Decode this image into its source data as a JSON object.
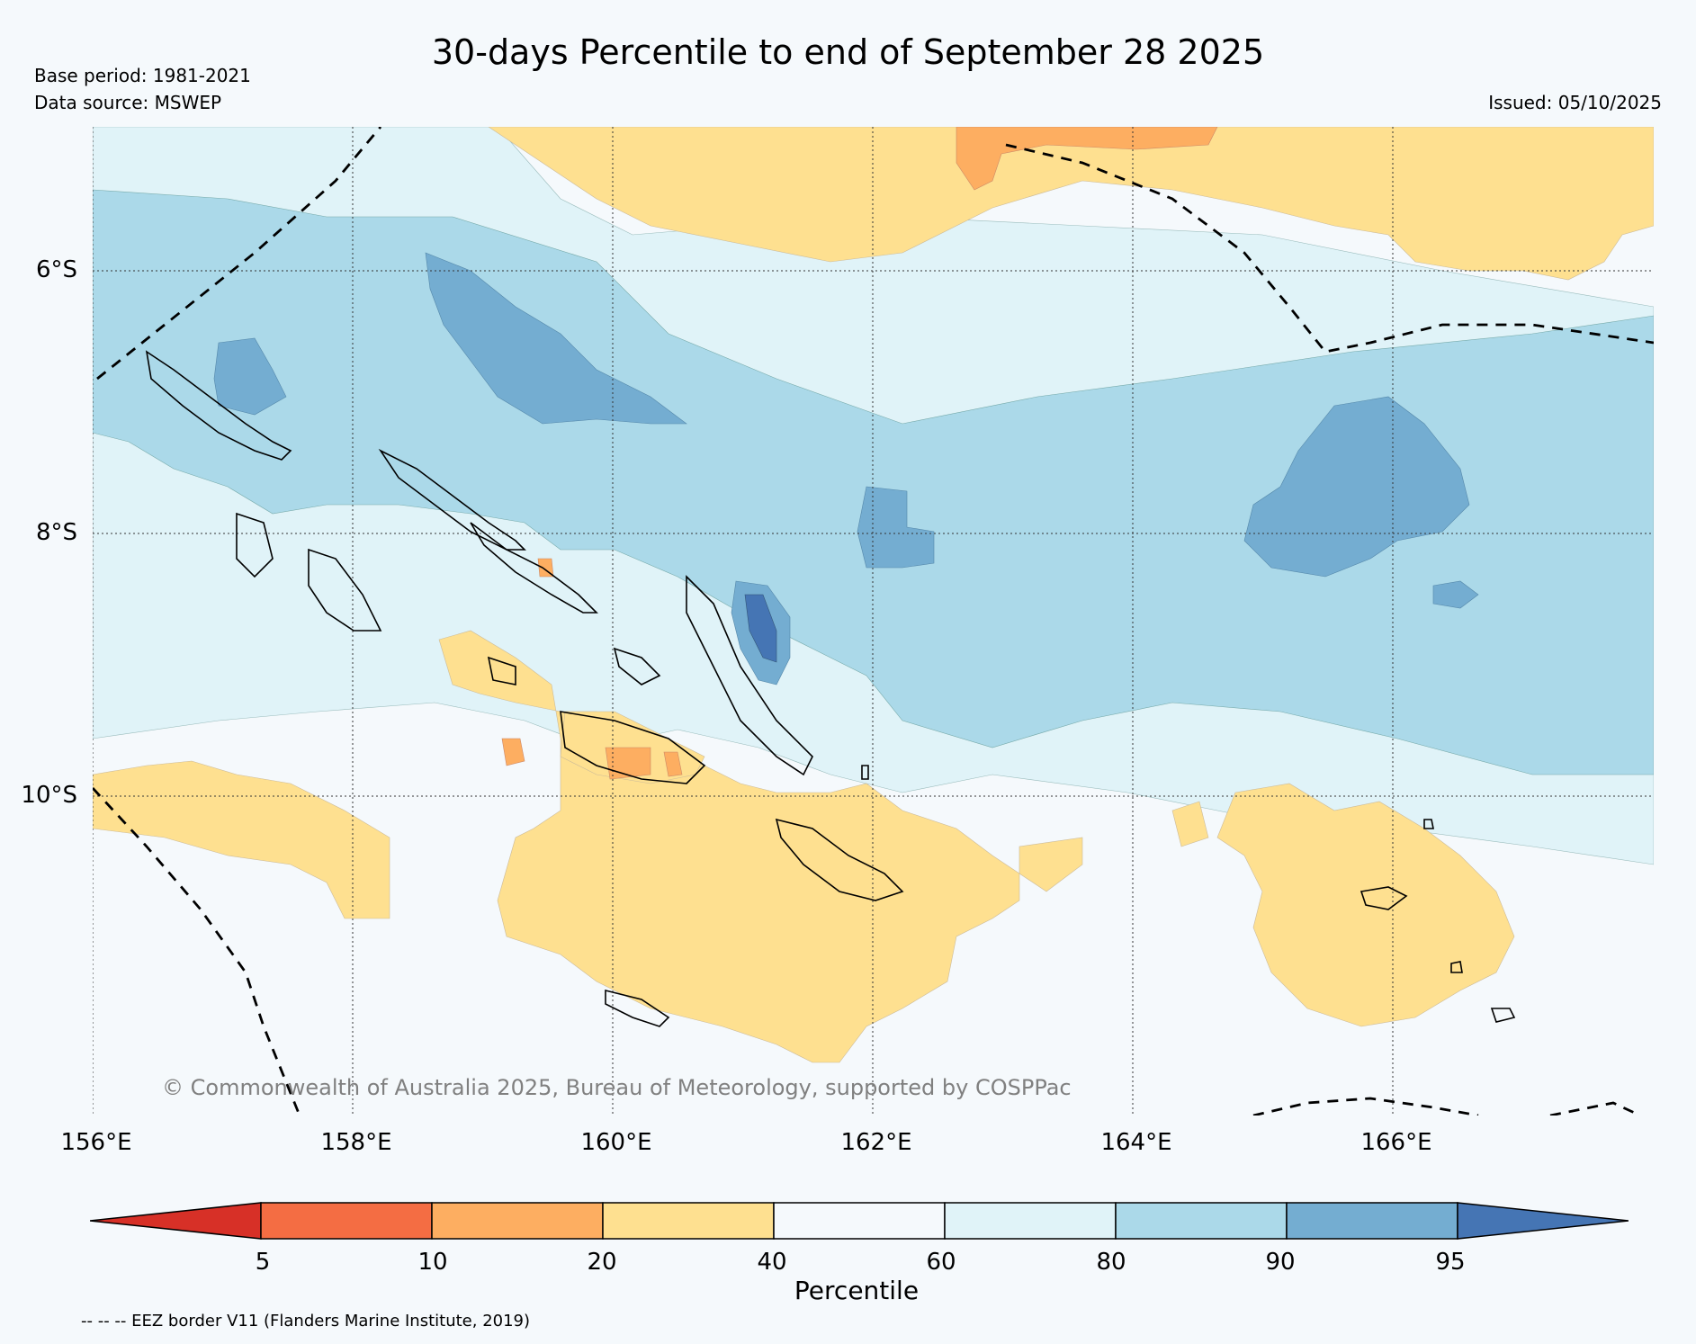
{
  "header": {
    "title": "30-days Percentile to end of September 28 2025",
    "base_period": "Base period: 1981-2021",
    "data_source": "Data source: MSWEP",
    "issued": "Issued: 05/10/2025"
  },
  "map": {
    "latitude_labels": [
      "6°S",
      "8°S",
      "10°S"
    ],
    "longitude_labels": [
      "156°E",
      "158°E",
      "160°E",
      "162°E",
      "164°E",
      "166°E"
    ],
    "copyright": "© Commonwealth of Australia 2025, Bureau of Meteorology, supported by COSPPac"
  },
  "legend": {
    "title": "Percentile",
    "ticks": [
      "5",
      "10",
      "20",
      "40",
      "60",
      "80",
      "90",
      "95"
    ],
    "bins": [
      {
        "range": "<5",
        "color": "#d73027"
      },
      {
        "range": "5-10",
        "color": "#f46d43"
      },
      {
        "range": "10-20",
        "color": "#fdae61"
      },
      {
        "range": "20-40",
        "color": "#fee090"
      },
      {
        "range": "40-60",
        "color": "#f5f9fc"
      },
      {
        "range": "60-80",
        "color": "#e0f3f8"
      },
      {
        "range": "80-90",
        "color": "#abd9e9"
      },
      {
        "range": "90-95",
        "color": "#74add1"
      },
      {
        "range": ">95",
        "color": "#4575b4"
      }
    ]
  },
  "footnote": "-- -- -- EEZ border V11 (Flanders Marine Institute, 2019)"
}
